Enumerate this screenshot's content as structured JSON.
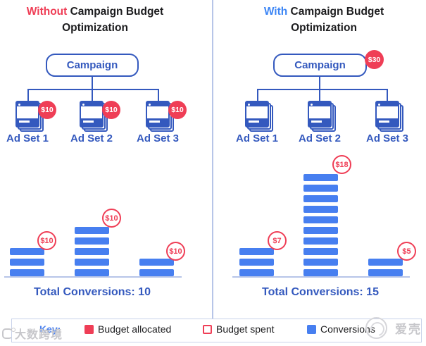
{
  "colors": {
    "red": "#EF3E56",
    "blue": "#477FF0",
    "dark_blue": "#3459BE",
    "divider": "#B7C5E8",
    "legend_border": "#C9D3EA",
    "watermark_gray": "#C7C7CB",
    "text_black": "#1C1C1E"
  },
  "sides": [
    {
      "title": {
        "highlight": "Without",
        "line1_rest": " Campaign Budget",
        "line2": "Optimization"
      },
      "campaign": {
        "label": "Campaign"
      },
      "ad_sets": [
        {
          "label": "Ad Set 1",
          "allocated": "$10",
          "spent": "$10",
          "conversions": 3
        },
        {
          "label": "Ad Set 2",
          "allocated": "$10",
          "spent": "$10",
          "conversions": 5
        },
        {
          "label": "Ad Set 3",
          "allocated": "$10",
          "spent": "$10",
          "conversions": 2
        }
      ],
      "total": "Total Conversions: 10"
    },
    {
      "title": {
        "highlight": "With",
        "line1_rest": " Campaign Budget",
        "line2": "Optimization"
      },
      "campaign": {
        "label": "Campaign",
        "budget": "$30"
      },
      "ad_sets": [
        {
          "label": "Ad Set 1",
          "spent": "$7",
          "conversions": 3
        },
        {
          "label": "Ad Set 2",
          "spent": "$18",
          "conversions": 10
        },
        {
          "label": "Ad Set 3",
          "spent": "$5",
          "conversions": 2
        }
      ],
      "total": "Total Conversions: 15"
    }
  ],
  "legend": {
    "key_label": "Key:",
    "items": [
      {
        "label": "Budget allocated",
        "swatch": "red-filled"
      },
      {
        "label": "Budget spent",
        "swatch": "red-outline"
      },
      {
        "label": "Conversions",
        "swatch": "blue-filled"
      }
    ]
  },
  "watermarks": {
    "bottom_left": "大数跨境",
    "bottom_right": "爱壳"
  },
  "chart_data": [
    {
      "type": "bar",
      "title": "Without Campaign Budget Optimization",
      "categories": [
        "Ad Set 1",
        "Ad Set 2",
        "Ad Set 3"
      ],
      "series": [
        {
          "name": "Conversions",
          "values": [
            3,
            5,
            2
          ]
        },
        {
          "name": "Budget allocated ($)",
          "values": [
            10,
            10,
            10
          ]
        },
        {
          "name": "Budget spent ($)",
          "values": [
            10,
            10,
            10
          ]
        }
      ],
      "total_conversions": 10,
      "legend_position": "bottom",
      "grid": false
    },
    {
      "type": "bar",
      "title": "With Campaign Budget Optimization",
      "categories": [
        "Ad Set 1",
        "Ad Set 2",
        "Ad Set 3"
      ],
      "series": [
        {
          "name": "Conversions",
          "values": [
            3,
            10,
            2
          ]
        },
        {
          "name": "Budget spent ($)",
          "values": [
            7,
            18,
            5
          ]
        }
      ],
      "campaign_budget": 30,
      "total_conversions": 15,
      "legend_position": "bottom",
      "grid": false
    }
  ]
}
